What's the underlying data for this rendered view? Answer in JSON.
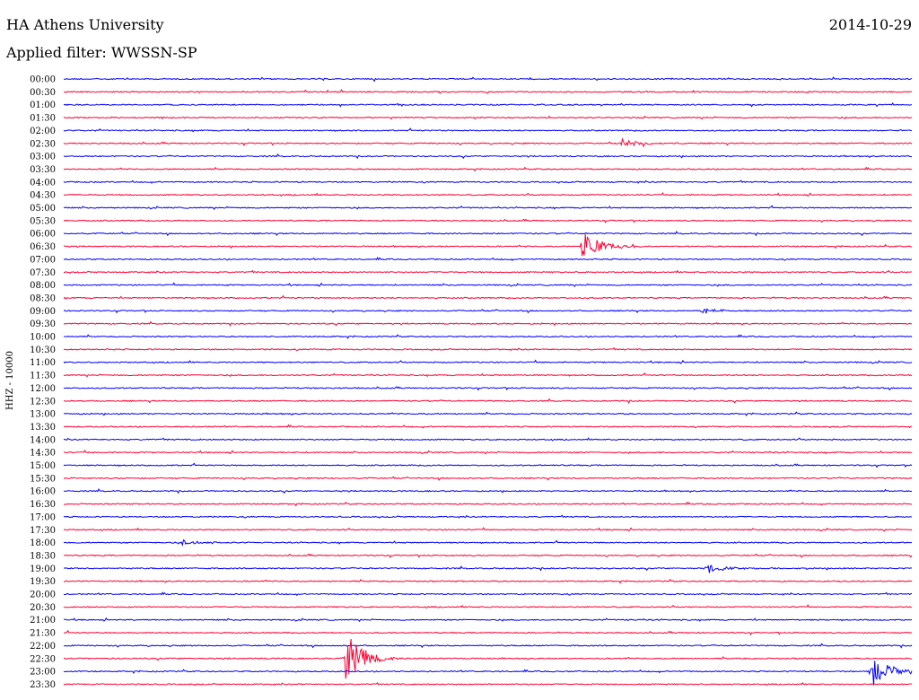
{
  "header": {
    "station": "HA Athens University",
    "date": "2014-10-29",
    "filter_label": "Applied filter: WWSSN-SP"
  },
  "colors": {
    "even": "#0000ff",
    "odd": "#ff0033"
  },
  "chart_data": {
    "type": "line",
    "title": "HA Athens University",
    "subtitle": "Applied filter: WWSSN-SP",
    "ylabel": "HHZ - 10000",
    "xlim": [
      0,
      30
    ],
    "rows": [
      "00:00",
      "00:30",
      "01:00",
      "01:30",
      "02:00",
      "02:30",
      "03:00",
      "03:30",
      "04:00",
      "04:30",
      "05:00",
      "05:30",
      "06:00",
      "06:30",
      "07:00",
      "07:30",
      "08:00",
      "08:30",
      "09:00",
      "09:30",
      "10:00",
      "10:30",
      "11:00",
      "11:30",
      "12:00",
      "12:30",
      "13:00",
      "13:30",
      "14:00",
      "14:30",
      "15:00",
      "15:30",
      "16:00",
      "16:30",
      "17:00",
      "17:30",
      "18:00",
      "18:30",
      "19:00",
      "19:30",
      "20:00",
      "20:30",
      "21:00",
      "21:30",
      "22:00",
      "22:30",
      "23:00",
      "23:30"
    ],
    "events": [
      {
        "row": "02:30",
        "minute": 19.8,
        "amplitude": 5
      },
      {
        "row": "06:30",
        "minute": 18.4,
        "amplitude": 18
      },
      {
        "row": "09:00",
        "minute": 22.6,
        "amplitude": 3
      },
      {
        "row": "18:00",
        "minute": 4.2,
        "amplitude": 4
      },
      {
        "row": "19:00",
        "minute": 22.8,
        "amplitude": 5
      },
      {
        "row": "22:30",
        "minute": 10.0,
        "amplitude": 30
      },
      {
        "row": "23:00",
        "minute": 28.6,
        "amplitude": 18
      }
    ]
  }
}
